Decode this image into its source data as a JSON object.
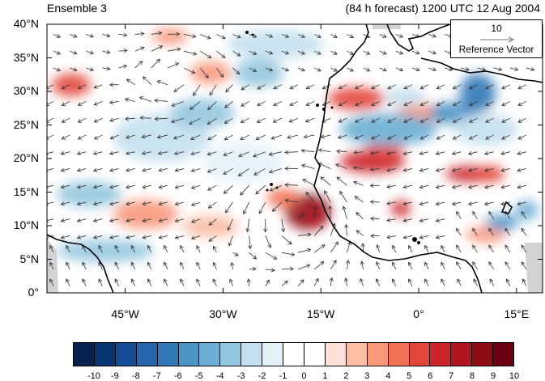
{
  "map": {
    "left_title": "Ensemble 3",
    "right_title": "(84 h forecast) 1200 UTC 12 Aug 2004",
    "lat_labels": [
      "40°N",
      "35°N",
      "30°N",
      "25°N",
      "20°N",
      "15°N",
      "10°N",
      "5°N",
      "0°"
    ],
    "lon_labels": [
      "45°W",
      "30°W",
      "15°W",
      "0°",
      "15°E"
    ],
    "extent": {
      "lon_min": -57,
      "lon_max": 19,
      "lat_min": 0,
      "lat_max": 40
    },
    "reference_vector": {
      "magnitude": "10",
      "label": "Reference Vector"
    },
    "colorbar": {
      "labels": [
        "-10",
        "-9",
        "-8",
        "-7",
        "-6",
        "-5",
        "-4",
        "-3",
        "-2",
        "-1",
        "0",
        "1",
        "2",
        "3",
        "4",
        "5",
        "6",
        "7",
        "8",
        "9",
        "10"
      ],
      "colors": [
        "#08214f",
        "#0a3573",
        "#154e96",
        "#2565ac",
        "#3178b6",
        "#4a94c6",
        "#6aaed3",
        "#93c7df",
        "#c4e0ee",
        "#e3f2f9",
        "#ffffff",
        "#ffffff",
        "#fde1d6",
        "#fbbea5",
        "#f7987a",
        "#f17053",
        "#e3463a",
        "#cc2529",
        "#b11620",
        "#8e0c16",
        "#6a0110"
      ]
    },
    "colors": {
      "land_line": "#000000",
      "missing": "#d3d3d3",
      "vector": "#333333"
    }
  }
}
